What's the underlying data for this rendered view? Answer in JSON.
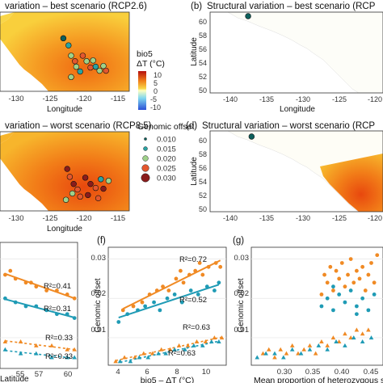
{
  "panels": {
    "a": {
      "title": "variation – best scenario (RCP2.6)",
      "xlabel": "",
      "x_ticks": [
        "-130",
        "-125",
        "-120",
        "-115"
      ]
    },
    "b": {
      "label": "(b)",
      "title": "Structural variation – best scenario (RCP",
      "ylabel": "Latitude",
      "x_ticks": [
        "-140",
        "-135",
        "-130",
        "-125",
        "-120"
      ],
      "y_ticks": [
        "60",
        "58",
        "56",
        "54",
        "52",
        "50"
      ]
    },
    "c": {
      "title": "variation – worst scenario (RCP8.5)",
      "xlabel": "Longitude",
      "x_ticks": [
        "-130",
        "-125",
        "-120",
        "-115"
      ],
      "top_xlabel": "Longitude"
    },
    "d": {
      "label": "(d)",
      "title": "Structural variation – worst scenario (RCP",
      "ylabel": "Latitude",
      "x_ticks": [
        "-140",
        "-135",
        "-130",
        "-125",
        "-120"
      ],
      "y_ticks": [
        "60",
        "58",
        "56",
        "54",
        "52",
        "50"
      ],
      "top_xlabel": "Longitude"
    },
    "e": {
      "xlabel": "Latitude",
      "x_ticks": [
        "55",
        "57",
        "60"
      ],
      "annotations": [
        "R²=0.41",
        "R²=0.31",
        "R²=0.33",
        "R²=0.33"
      ]
    },
    "f": {
      "label": "(f)",
      "xlabel": "bio5 – ΔT (°C)",
      "ylabel": "Genomic offset",
      "x_ticks": [
        "4",
        "6",
        "8",
        "10"
      ],
      "y_ticks": [
        "0.03",
        "0.02",
        "0.01"
      ],
      "annotations": [
        "R²=0.72",
        "R²=0.52",
        "R²=0.63",
        "R²=0.63"
      ]
    },
    "g": {
      "label": "(g)",
      "xlabel": "Mean proportion of heterozygous sites",
      "ylabel": "Genomic offset",
      "x_ticks": [
        "0.30",
        "0.35",
        "0.40",
        "0.45"
      ],
      "y_ticks": [
        "0.03",
        "0.02",
        "0.01"
      ]
    }
  },
  "legend_temp": {
    "title1": "bio5",
    "title2": "ΔT (°C)",
    "ticks": [
      "10",
      "5",
      "0",
      "-5",
      "-10"
    ]
  },
  "legend_offset": {
    "title": "Genomic offset",
    "labels": [
      "0.010",
      "0.015",
      "0.020",
      "0.025",
      "0.030"
    ],
    "colors": [
      "#0d5f5b",
      "#2aa3a3",
      "#9fd18a",
      "#e4572e",
      "#8a1c1c"
    ]
  },
  "colors": {
    "snv": "#f08a24",
    "sv": "#1f9bb5",
    "land_hot": "#f07e18",
    "land_warm": "#f9c53c",
    "ocean": "#ffffff"
  },
  "chart_data": [
    {
      "type": "scatter",
      "panel": "f",
      "xlabel": "bio5 – ΔT (°C)",
      "ylabel": "Genomic offset",
      "ylim": [
        0.003,
        0.033
      ],
      "xlim": [
        3.5,
        11.5
      ],
      "series": [
        {
          "points": [
            [
              4.5,
              0.017
            ],
            [
              5.2,
              0.018
            ],
            [
              5.8,
              0.019
            ],
            [
              6.3,
              0.021
            ],
            [
              6.8,
              0.022
            ],
            [
              7.2,
              0.023
            ],
            [
              7.6,
              0.022
            ],
            [
              8.1,
              0.025
            ],
            [
              8.6,
              0.024
            ],
            [
              9.0,
              0.026
            ],
            [
              9.4,
              0.027
            ],
            [
              9.9,
              0.026
            ],
            [
              10.3,
              0.028
            ],
            [
              10.8,
              0.029
            ],
            [
              11.1,
              0.028
            ],
            [
              8.4,
              0.027
            ],
            [
              9.7,
              0.029
            ]
          ]
        },
        {
          "points": [
            [
              4.2,
              0.014
            ],
            [
              4.8,
              0.016
            ],
            [
              5.5,
              0.017
            ],
            [
              6.0,
              0.018
            ],
            [
              6.6,
              0.019
            ],
            [
              7.0,
              0.017
            ],
            [
              7.5,
              0.02
            ],
            [
              8.0,
              0.021
            ],
            [
              8.5,
              0.019
            ],
            [
              9.1,
              0.022
            ],
            [
              9.6,
              0.021
            ],
            [
              10.2,
              0.023
            ],
            [
              10.7,
              0.022
            ],
            [
              11.0,
              0.024
            ]
          ]
        },
        {
          "points": [
            [
              4.0,
              0.004
            ],
            [
              4.6,
              0.005
            ],
            [
              5.3,
              0.005
            ],
            [
              5.9,
              0.006
            ],
            [
              6.5,
              0.006
            ],
            [
              7.1,
              0.007
            ],
            [
              7.7,
              0.007
            ],
            [
              8.3,
              0.008
            ],
            [
              8.9,
              0.008
            ],
            [
              9.5,
              0.009
            ],
            [
              10.1,
              0.009
            ],
            [
              10.7,
              0.01
            ],
            [
              11.2,
              0.01
            ]
          ]
        },
        {
          "points": [
            [
              4.3,
              0.004
            ],
            [
              5.0,
              0.004
            ],
            [
              5.6,
              0.005
            ],
            [
              6.2,
              0.005
            ],
            [
              6.9,
              0.006
            ],
            [
              7.4,
              0.006
            ],
            [
              8.0,
              0.007
            ],
            [
              8.7,
              0.007
            ],
            [
              9.3,
              0.008
            ],
            [
              9.9,
              0.008
            ],
            [
              10.5,
              0.009
            ],
            [
              11.0,
              0.009
            ]
          ]
        }
      ]
    },
    {
      "type": "scatter",
      "panel": "g",
      "xlabel": "Mean proportion of heterozygous sites",
      "ylabel": "Genomic offset",
      "xlim": [
        0.26,
        0.485
      ],
      "ylim": [
        0.003,
        0.033
      ],
      "series": [
        {
          "points": [
            [
              0.38,
              0.021
            ],
            [
              0.385,
              0.026
            ],
            [
              0.39,
              0.024
            ],
            [
              0.395,
              0.028
            ],
            [
              0.4,
              0.022
            ],
            [
              0.405,
              0.027
            ],
            [
              0.41,
              0.025
            ],
            [
              0.415,
              0.029
            ],
            [
              0.42,
              0.023
            ],
            [
              0.425,
              0.026
            ],
            [
              0.43,
              0.03
            ],
            [
              0.435,
              0.024
            ],
            [
              0.44,
              0.027
            ],
            [
              0.445,
              0.025
            ],
            [
              0.45,
              0.028
            ],
            [
              0.455,
              0.022
            ],
            [
              0.46,
              0.026
            ],
            [
              0.465,
              0.029
            ],
            [
              0.47,
              0.024
            ],
            [
              0.475,
              0.031
            ]
          ]
        },
        {
          "points": [
            [
              0.38,
              0.018
            ],
            [
              0.39,
              0.02
            ],
            [
              0.4,
              0.017
            ],
            [
              0.41,
              0.021
            ],
            [
              0.42,
              0.019
            ],
            [
              0.43,
              0.022
            ],
            [
              0.44,
              0.018
            ],
            [
              0.45,
              0.02
            ],
            [
              0.46,
              0.017
            ],
            [
              0.47,
              0.021
            ],
            [
              0.4,
              0.023
            ],
            [
              0.44,
              0.016
            ]
          ]
        },
        {
          "points": [
            [
              0.28,
              0.006
            ],
            [
              0.29,
              0.007
            ],
            [
              0.3,
              0.005
            ],
            [
              0.31,
              0.007
            ],
            [
              0.32,
              0.006
            ],
            [
              0.33,
              0.008
            ],
            [
              0.34,
              0.006
            ],
            [
              0.35,
              0.007
            ],
            [
              0.36,
              0.008
            ],
            [
              0.37,
              0.006
            ],
            [
              0.38,
              0.009
            ],
            [
              0.39,
              0.008
            ],
            [
              0.4,
              0.01
            ],
            [
              0.41,
              0.009
            ],
            [
              0.42,
              0.011
            ],
            [
              0.43,
              0.01
            ],
            [
              0.44,
              0.012
            ],
            [
              0.45,
              0.011
            ],
            [
              0.46,
              0.012
            ]
          ]
        },
        {
          "points": [
            [
              0.27,
              0.005
            ],
            [
              0.285,
              0.006
            ],
            [
              0.3,
              0.006
            ],
            [
              0.315,
              0.005
            ],
            [
              0.33,
              0.007
            ],
            [
              0.345,
              0.006
            ],
            [
              0.36,
              0.007
            ],
            [
              0.375,
              0.008
            ],
            [
              0.39,
              0.007
            ],
            [
              0.405,
              0.009
            ],
            [
              0.42,
              0.008
            ],
            [
              0.435,
              0.01
            ],
            [
              0.45,
              0.009
            ],
            [
              0.465,
              0.01
            ]
          ]
        }
      ]
    },
    {
      "type": "scatter",
      "panel": "e",
      "xlabel": "Latitude",
      "xlim": [
        53,
        60.5
      ],
      "ylim": [
        0.003,
        0.033
      ],
      "series": [
        {
          "points": [
            [
              53.5,
              0.026
            ],
            [
              54.5,
              0.025
            ],
            [
              55.5,
              0.024
            ],
            [
              56.5,
              0.023
            ],
            [
              57.5,
              0.022
            ],
            [
              58.5,
              0.022
            ],
            [
              59.5,
              0.021
            ],
            [
              60.2,
              0.02
            ],
            [
              54.0,
              0.027
            ],
            [
              56.0,
              0.024
            ]
          ]
        },
        {
          "points": [
            [
              53.5,
              0.02
            ],
            [
              54.5,
              0.019
            ],
            [
              55.5,
              0.018
            ],
            [
              56.5,
              0.018
            ],
            [
              57.5,
              0.017
            ],
            [
              58.5,
              0.016
            ],
            [
              59.5,
              0.016
            ],
            [
              60.2,
              0.015
            ]
          ]
        },
        {
          "points": [
            [
              53.5,
              0.009
            ],
            [
              55.0,
              0.009
            ],
            [
              56.5,
              0.008
            ],
            [
              58.0,
              0.008
            ],
            [
              59.5,
              0.007
            ],
            [
              60.2,
              0.007
            ]
          ]
        },
        {
          "points": [
            [
              53.5,
              0.007
            ],
            [
              55.0,
              0.006
            ],
            [
              56.5,
              0.006
            ],
            [
              58.0,
              0.005
            ],
            [
              59.5,
              0.005
            ],
            [
              60.2,
              0.005
            ]
          ]
        }
      ]
    }
  ],
  "map_sites_a": [
    [
      0.49,
      0.33,
      0
    ],
    [
      0.53,
      0.42,
      1
    ],
    [
      0.55,
      0.55,
      2
    ],
    [
      0.58,
      0.62,
      3
    ],
    [
      0.59,
      0.69,
      2
    ],
    [
      0.64,
      0.55,
      3
    ],
    [
      0.67,
      0.62,
      2
    ],
    [
      0.7,
      0.7,
      3
    ],
    [
      0.72,
      0.61,
      2
    ],
    [
      0.74,
      0.69,
      1
    ],
    [
      0.77,
      0.74,
      2
    ],
    [
      0.8,
      0.68,
      2
    ],
    [
      0.82,
      0.74,
      3
    ],
    [
      0.62,
      0.75,
      1
    ],
    [
      0.55,
      0.82,
      2
    ]
  ],
  "map_sites_c": [
    [
      0.52,
      0.47,
      4
    ],
    [
      0.54,
      0.57,
      3
    ],
    [
      0.57,
      0.66,
      4
    ],
    [
      0.6,
      0.73,
      3
    ],
    [
      0.66,
      0.58,
      4
    ],
    [
      0.7,
      0.66,
      4
    ],
    [
      0.74,
      0.71,
      3
    ],
    [
      0.78,
      0.6,
      1
    ],
    [
      0.8,
      0.72,
      4
    ],
    [
      0.84,
      0.62,
      2
    ],
    [
      0.56,
      0.78,
      2
    ],
    [
      0.62,
      0.82,
      3
    ],
    [
      0.68,
      0.8,
      4
    ],
    [
      0.76,
      0.84,
      3
    ],
    [
      0.51,
      0.86,
      2
    ]
  ],
  "map_sites_b": [
    [
      0.22,
      0.05,
      0
    ]
  ],
  "map_sites_d": [
    [
      0.24,
      0.07,
      0
    ]
  ]
}
